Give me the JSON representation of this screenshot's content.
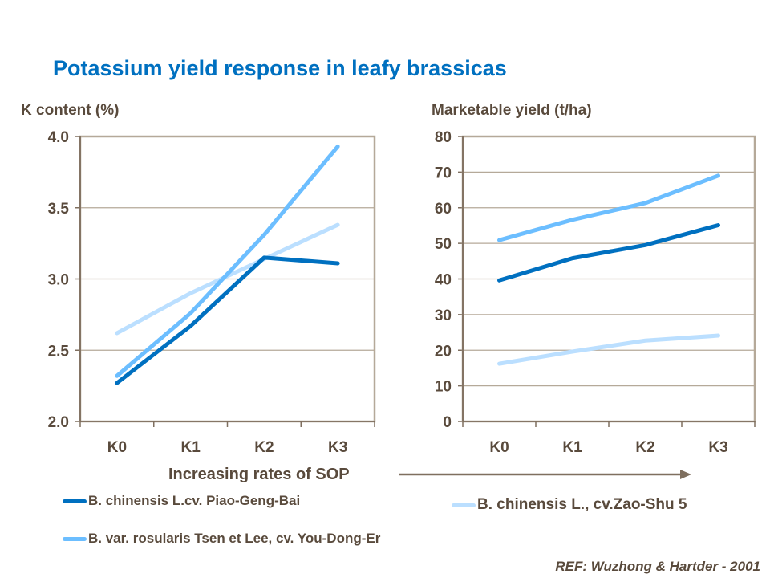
{
  "title": "Potassium yield response in leafy brassicas",
  "x_caption": "Increasing rates of SOP",
  "reference": "REF: Wuzhong & Hartder - 2001",
  "colors": {
    "title": "#0070C0",
    "series": [
      "#0070C0",
      "#6CBEFF",
      "#BBDFFF"
    ],
    "axis": "#7F6F5F",
    "grid": "#B5A999"
  },
  "legend": [
    {
      "label": "B. chinensis L.cv. Piao-Geng-Bai",
      "color": "#0070C0"
    },
    {
      "label": "B. var. rosularis Tsen et Lee, cv. You-Dong-Er",
      "color": "#6CBEFF"
    },
    {
      "label": "B. chinensis L., cv.Zao-Shu 5",
      "color": "#BBDFFF"
    }
  ],
  "chart_data": [
    {
      "type": "line",
      "ylabel": "K content (%)",
      "categories": [
        "K0",
        "K1",
        "K2",
        "K3"
      ],
      "ylim": [
        2.0,
        4.0
      ],
      "yticks": [
        "2.0",
        "2.5",
        "3.0",
        "3.5",
        "4.0"
      ],
      "grid": true,
      "series": [
        {
          "name": "B. chinensis L.cv. Piao-Geng-Bai",
          "values": [
            2.27,
            2.67,
            3.15,
            3.11
          ]
        },
        {
          "name": "B. var. rosularis Tsen et Lee, cv. You-Dong-Er",
          "values": [
            2.32,
            2.76,
            3.31,
            3.93
          ]
        },
        {
          "name": "B. chinensis L., cv.Zao-Shu 5",
          "values": [
            2.62,
            2.9,
            3.14,
            3.38
          ]
        }
      ]
    },
    {
      "type": "line",
      "ylabel": "Marketable yield (t/ha)",
      "categories": [
        "K0",
        "K1",
        "K2",
        "K3"
      ],
      "ylim": [
        0,
        80
      ],
      "yticks": [
        "0",
        "10",
        "20",
        "30",
        "40",
        "50",
        "60",
        "70",
        "80"
      ],
      "grid": true,
      "series": [
        {
          "name": "B. chinensis L.cv. Piao-Geng-Bai",
          "values": [
            39.6,
            45.8,
            49.5,
            55.1
          ]
        },
        {
          "name": "B. var. rosularis Tsen et Lee, cv. You-Dong-Er",
          "values": [
            50.9,
            56.6,
            61.3,
            69.0
          ]
        },
        {
          "name": "B. chinensis L., cv.Zao-Shu 5",
          "values": [
            16.2,
            19.6,
            22.7,
            24.1
          ]
        }
      ]
    }
  ]
}
